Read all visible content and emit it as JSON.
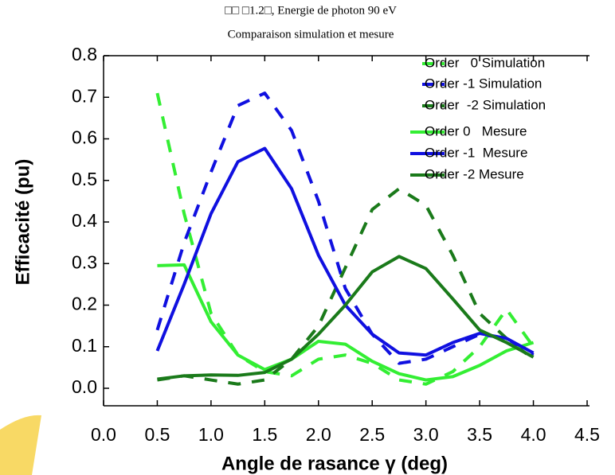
{
  "chart_data": {
    "type": "line",
    "title": "□□ □1.2□, Energie de photon 90 eV",
    "subtitle": "Comparaison simulation et mesure",
    "x_label": "Angle de rasance γ (deg)",
    "y_label": "Efficacité (pu)",
    "x": [
      0.5,
      0.75,
      1.0,
      1.25,
      1.5,
      1.75,
      2.0,
      2.25,
      2.5,
      2.75,
      3.0,
      3.25,
      3.5,
      3.75,
      4.0
    ],
    "series": [
      {
        "name": "Order   0 Simulation",
        "color": "#33ee33",
        "dashed": true,
        "values": [
          0.71,
          0.42,
          0.18,
          0.08,
          0.04,
          0.03,
          0.07,
          0.08,
          0.06,
          0.02,
          0.01,
          0.04,
          0.1,
          0.19,
          0.1
        ]
      },
      {
        "name": "Order -1 Simulation",
        "color": "#1010e0",
        "dashed": true,
        "values": [
          0.14,
          0.35,
          0.52,
          0.68,
          0.71,
          0.62,
          0.45,
          0.24,
          0.13,
          0.06,
          0.07,
          0.1,
          0.13,
          0.12,
          0.08
        ]
      },
      {
        "name": "Order  -2 Simulation",
        "color": "#1a7a1a",
        "dashed": true,
        "values": [
          0.02,
          0.03,
          0.02,
          0.01,
          0.02,
          0.07,
          0.15,
          0.29,
          0.43,
          0.48,
          0.44,
          0.32,
          0.18,
          0.12,
          0.07
        ]
      },
      {
        "name": "Order 0   Mesure",
        "color": "#33ee33",
        "dashed": false,
        "values": [
          0.295,
          0.297,
          0.16,
          0.08,
          0.045,
          0.07,
          0.113,
          0.106,
          0.065,
          0.035,
          0.02,
          0.028,
          0.055,
          0.09,
          0.11
        ]
      },
      {
        "name": "Order -1  Mesure",
        "color": "#1010e0",
        "dashed": false,
        "values": [
          0.09,
          0.25,
          0.42,
          0.545,
          0.577,
          0.48,
          0.32,
          0.2,
          0.13,
          0.085,
          0.08,
          0.11,
          0.132,
          0.12,
          0.085
        ]
      },
      {
        "name": "Order -2 Mesure",
        "color": "#1a7a1a",
        "dashed": false,
        "values": [
          0.022,
          0.03,
          0.032,
          0.031,
          0.038,
          0.07,
          0.13,
          0.2,
          0.28,
          0.317,
          0.288,
          0.215,
          0.14,
          0.11,
          0.075
        ]
      }
    ],
    "xlim": [
      0.0,
      4.5
    ],
    "xticks": [
      {
        "value": 0.0,
        "label": "0.0"
      },
      0.5,
      {
        "value": 1.0,
        "label": "1.0"
      },
      1.5,
      {
        "value": 2.0,
        "label": "2.0"
      },
      2.5,
      {
        "value": 3.0,
        "label": "3.0"
      },
      3.5,
      {
        "value": 4.0,
        "label": "4.0"
      },
      4.5
    ],
    "ylim": [
      0.0,
      0.8
    ],
    "yticks": [
      {
        "value": 0.0,
        "label": "0.0"
      },
      0.1,
      0.2,
      0.3,
      0.4,
      0.5,
      0.6,
      0.7,
      0.8
    ],
    "grid": false
  }
}
